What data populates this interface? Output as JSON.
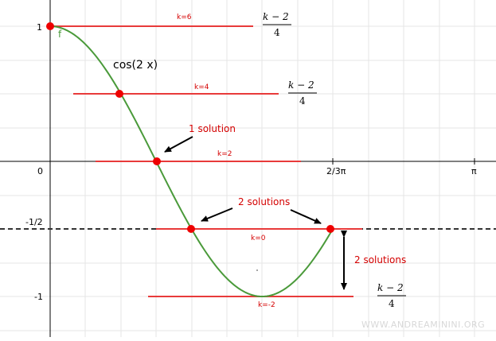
{
  "axes": {
    "x_ticks": [
      "0",
      "2/3π",
      "π"
    ],
    "y_ticks": [
      "1",
      "-1/2",
      "-1"
    ]
  },
  "curve": {
    "label": "cos(2 x)",
    "name": "f",
    "color": "#4a9a3a"
  },
  "levels": [
    {
      "k_label": "k=6",
      "fraction": {
        "numerator": "k − 2",
        "denominator": "4"
      }
    },
    {
      "k_label": "k=4",
      "fraction": {
        "numerator": "k − 2",
        "denominator": "4"
      }
    },
    {
      "k_label": "k=2"
    },
    {
      "k_label": "k=0"
    },
    {
      "k_label": "k=-2",
      "fraction": {
        "numerator": "k − 2",
        "denominator": "4"
      }
    }
  ],
  "annotations": {
    "one_solution": "1 solution",
    "two_solutions_top": "2 solutions",
    "two_solutions_side": "2 solutions"
  },
  "colors": {
    "level_line": "#e83a3a",
    "point": "#ee0000",
    "annotation": "#d40000",
    "dashed": "#333333",
    "grid": "#e6e6e6"
  },
  "watermark": "WWW.ANDREAMININI.ORG"
}
